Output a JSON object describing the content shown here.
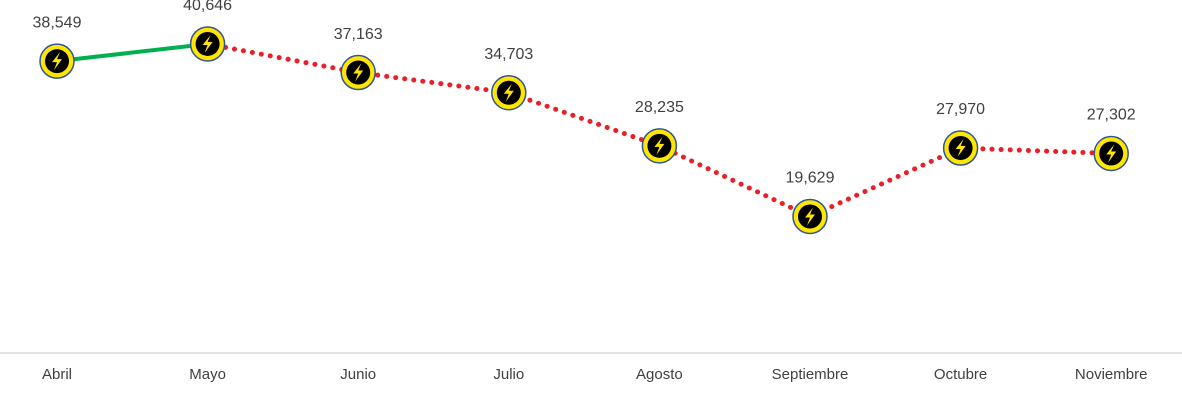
{
  "chart_data": {
    "type": "line",
    "categories": [
      "Abril",
      "Mayo",
      "Junio",
      "Julio",
      "Agosto",
      "Septiembre",
      "Octubre",
      "Noviembre"
    ],
    "values": [
      38549,
      40646,
      37163,
      34703,
      28235,
      19629,
      27970,
      27302
    ],
    "value_labels": [
      "38,549",
      "40,646",
      "37,163",
      "34,703",
      "28,235",
      "19,629",
      "27,970",
      "27,302"
    ],
    "segments": [
      {
        "color": "#00b050",
        "style": "solid",
        "from": 0,
        "to": 1
      },
      {
        "color": "#e8202a",
        "style": "dotted",
        "from": 1,
        "to": 7
      }
    ],
    "marker_color": "#ffe600",
    "ylim": [
      3000,
      46000
    ]
  }
}
